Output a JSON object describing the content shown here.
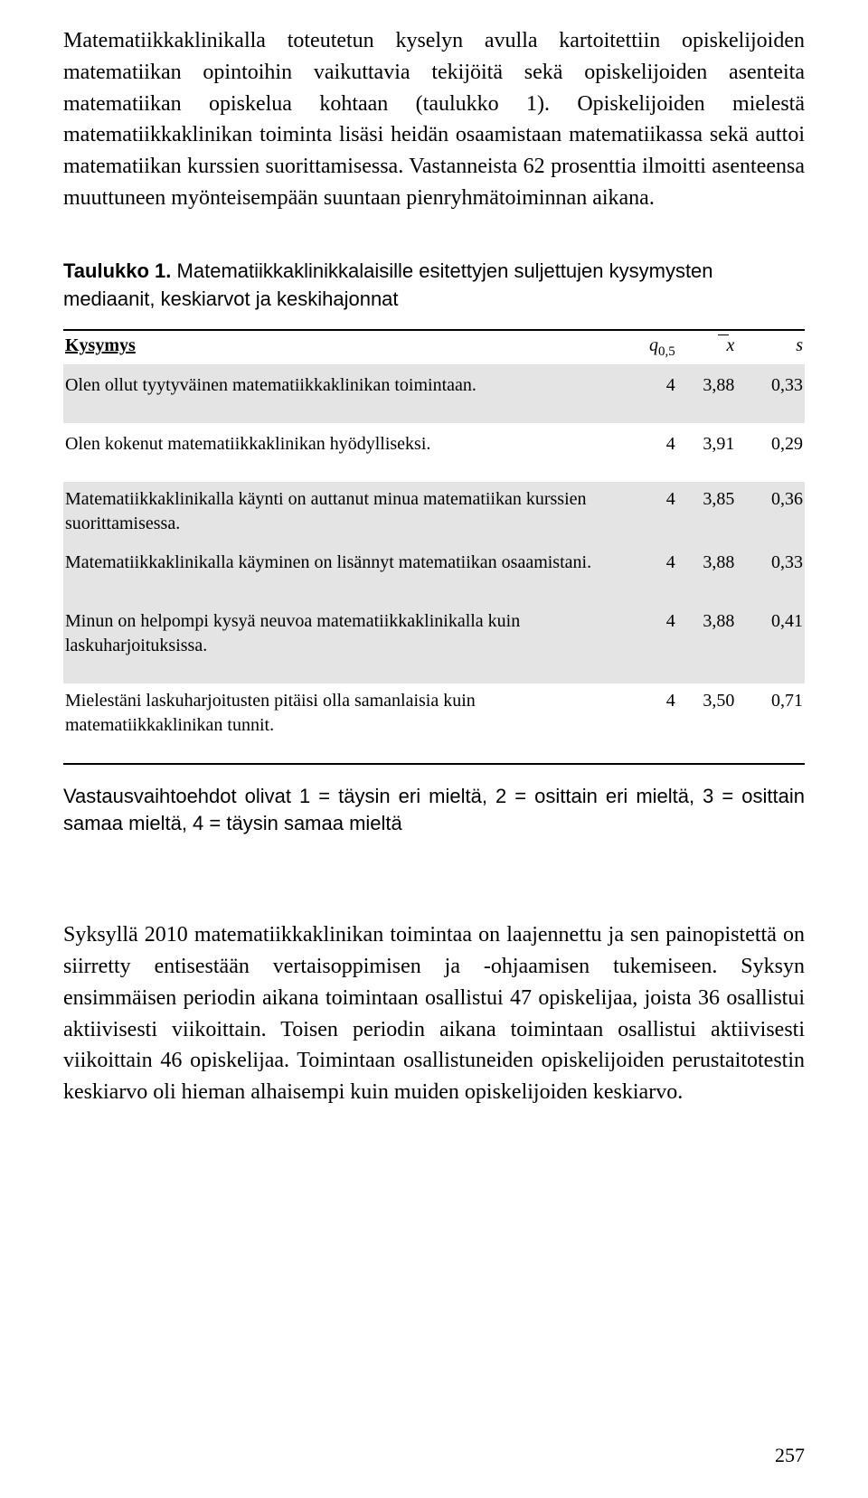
{
  "para1": "Matematiikkaklinikalla toteutetun kyselyn avulla kartoitettiin opiskelijoiden matematiikan opintoihin vaikuttavia tekijöitä sekä opiskelijoiden asenteita matematiikan opiskelua kohtaan (taulukko 1). Opiskelijoiden mielestä matematiikkaklinikan toiminta lisäsi heidän osaamistaan matematiikassa sekä auttoi matematiikan kurssien suorittamisessa. Vastanneista 62 prosenttia ilmoitti asenteensa muuttuneen myönteisempään suuntaan pienryhmätoiminnan aikana.",
  "caption": {
    "label": "Taulukko 1.",
    "text": "Matematiikkaklinikkalaisille esitettyjen suljettujen kysymysten mediaanit, keskiarvot ja keskihajonnat"
  },
  "table": {
    "columns": {
      "question": "Kysymys",
      "median_symbol_q": "q",
      "median_sub": "0,5",
      "mean_symbol": "x",
      "sd_symbol": "s"
    },
    "rows": [
      {
        "shaded": true,
        "tall": true,
        "q": "Olen ollut tyytyväinen matematiikkaklinikan toimintaan.",
        "q05": "4",
        "xbar": "3,88",
        "s": "0,33"
      },
      {
        "shaded": false,
        "tall": true,
        "q": "Olen kokenut matematiikkaklinikan hyödylliseksi.",
        "q05": "4",
        "xbar": "3,91",
        "s": "0,29"
      },
      {
        "shaded": true,
        "tall": false,
        "q": "Matematiikkaklinikalla käynti on auttanut minua matematiikan kurssien suorittamisessa.",
        "q05": "4",
        "xbar": "3,85",
        "s": "0,36"
      },
      {
        "shaded": true,
        "tall": true,
        "q": "Matematiikkaklinikalla käyminen on lisännyt matematiikan osaamistani.",
        "q05": "4",
        "xbar": "3,88",
        "s": "0,33"
      },
      {
        "shaded": true,
        "tall": true,
        "q": "Minun on helpompi kysyä neuvoa matematiikkaklinikalla kuin laskuharjoituksissa.",
        "q05": "4",
        "xbar": "3,88",
        "s": "0,41"
      },
      {
        "shaded": false,
        "tall": false,
        "last": true,
        "q": "Mielestäni laskuharjoitusten pitäisi olla samanlaisia kuin matematiikkaklinikan tunnit.",
        "q05": "4",
        "xbar": "3,50",
        "s": "0,71"
      }
    ]
  },
  "note": "Vastausvaihtoehdot olivat 1 = täysin eri mieltä, 2 = osittain eri mieltä, 3 = osittain samaa mieltä, 4 = täysin samaa mieltä",
  "para2": "Syksyllä 2010 matematiikkaklinikan toimintaa on laajennettu ja sen painopistettä on siirretty entisestään vertaisoppimisen ja -ohjaamisen tukemiseen. Syksyn ensimmäisen periodin aikana toimintaan osallistui 47 opiskelijaa, joista 36 osallistui aktiivisesti viikoittain. Toisen periodin aikana toimintaan osallistui aktiivisesti viikoittain 46 opiskelijaa. Toimintaan osallistuneiden opiskelijoiden perustaitotestin keskiarvo oli hieman alhaisempi kuin muiden opiskelijoiden keskiarvo.",
  "pagenum": "257"
}
